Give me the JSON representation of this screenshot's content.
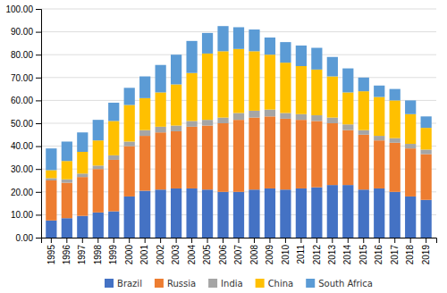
{
  "chart_data": {
    "type": "bar",
    "stacked": true,
    "grid": true,
    "legend": "bottom",
    "categories": [
      "1995",
      "1996",
      "1997",
      "1998",
      "1999",
      "2000",
      "2001",
      "2002",
      "2003",
      "2004",
      "2005",
      "2006",
      "2007",
      "2008",
      "2009",
      "2010",
      "2011",
      "2012",
      "2013",
      "2014",
      "2015",
      "2016",
      "2017",
      "2018",
      "2019"
    ],
    "series": [
      {
        "name": "Brazil",
        "color": "#4472C4",
        "values": [
          7.5,
          8.5,
          9.5,
          11.0,
          11.5,
          18.0,
          20.5,
          21.0,
          21.5,
          21.5,
          21.0,
          20.0,
          20.0,
          21.0,
          21.5,
          21.0,
          21.5,
          22.0,
          23.0,
          23.0,
          21.0,
          21.5,
          20.0,
          18.0,
          16.5
        ]
      },
      {
        "name": "Russia",
        "color": "#ED7D31",
        "values": [
          17.5,
          15.5,
          17.0,
          19.0,
          22.5,
          22.0,
          24.0,
          25.0,
          25.0,
          27.0,
          28.0,
          30.0,
          31.5,
          31.5,
          31.5,
          31.0,
          30.0,
          29.0,
          27.0,
          24.0,
          24.0,
          21.0,
          21.5,
          21.0,
          20.0
        ]
      },
      {
        "name": "India",
        "color": "#A5A5A5",
        "values": [
          1.0,
          1.5,
          1.5,
          1.5,
          2.0,
          2.0,
          2.5,
          2.5,
          2.5,
          2.5,
          2.5,
          2.5,
          3.0,
          3.0,
          3.0,
          2.5,
          2.5,
          2.5,
          2.5,
          2.5,
          2.0,
          2.0,
          2.0,
          2.0,
          2.0
        ]
      },
      {
        "name": "China",
        "color": "#FFC000",
        "values": [
          3.5,
          8.0,
          9.5,
          11.0,
          15.0,
          16.0,
          14.0,
          15.0,
          18.0,
          21.0,
          29.0,
          29.0,
          28.0,
          26.0,
          24.0,
          22.0,
          21.0,
          20.0,
          18.0,
          14.0,
          17.0,
          17.0,
          16.5,
          13.0,
          9.5
        ]
      },
      {
        "name": "South Africa",
        "color": "#5B9BD5",
        "values": [
          9.5,
          8.5,
          8.5,
          9.0,
          8.0,
          7.5,
          9.5,
          12.0,
          13.0,
          14.0,
          9.0,
          11.0,
          9.5,
          9.5,
          7.5,
          9.0,
          9.0,
          9.5,
          8.5,
          10.5,
          6.0,
          5.0,
          5.0,
          6.0,
          5.0
        ]
      }
    ],
    "ylim": [
      0,
      100
    ],
    "yticks": [
      {
        "value": 0,
        "label": "0.00"
      },
      {
        "value": 10,
        "label": "10.00"
      },
      {
        "value": 20,
        "label": "20.00"
      },
      {
        "value": 30,
        "label": "30.00"
      },
      {
        "value": 40,
        "label": "40.00"
      },
      {
        "value": 50,
        "label": "50.00"
      },
      {
        "value": 60,
        "label": "60.00"
      },
      {
        "value": 70,
        "label": "70.00"
      },
      {
        "value": 80,
        "label": "80.00"
      },
      {
        "value": 90,
        "label": "90.00"
      },
      {
        "value": 100,
        "label": "100.00"
      }
    ]
  }
}
